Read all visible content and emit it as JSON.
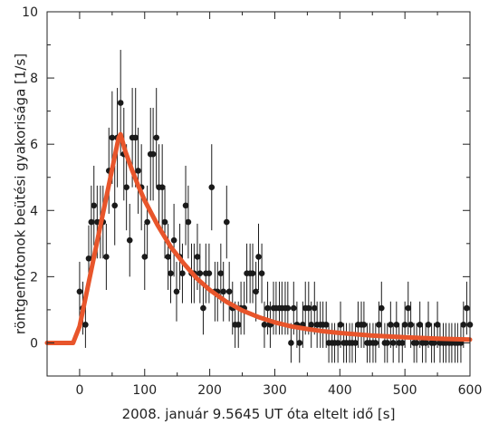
{
  "chart_data": {
    "type": "scatter",
    "xlabel": "2008. január 9.5645 UT óta eltelt idő [s]",
    "ylabel": "röntgenfotonok beütési gyakorisága [1/s]",
    "xlim": [
      -50,
      600
    ],
    "ylim": [
      -1,
      10
    ],
    "x_ticks": [
      "0",
      "100",
      "200",
      "300",
      "400",
      "500",
      "600"
    ],
    "y_ticks": [
      "0",
      "2",
      "4",
      "6",
      "8",
      "10"
    ],
    "grid": false,
    "colors": {
      "model": "#e8552b",
      "points": "#1a1a1a",
      "error_bars": "#1a1a1a",
      "axes": "#222222"
    },
    "series": [
      {
        "type": "scatter-errorbar",
        "points": [
          [
            0,
            1.55,
            0.9
          ],
          [
            5,
            1.05,
            0.8
          ],
          [
            9,
            0.55,
            0.7
          ],
          [
            14,
            2.55,
            1.0
          ],
          [
            18,
            3.65,
            1.1
          ],
          [
            22,
            4.15,
            1.2
          ],
          [
            27,
            3.65,
            1.1
          ],
          [
            32,
            3.65,
            1.1
          ],
          [
            36,
            3.65,
            1.1
          ],
          [
            41,
            2.6,
            1.0
          ],
          [
            45,
            5.2,
            1.3
          ],
          [
            50,
            6.2,
            1.4
          ],
          [
            54,
            4.15,
            1.2
          ],
          [
            58,
            6.2,
            1.5
          ],
          [
            63,
            7.25,
            1.6
          ],
          [
            68,
            5.7,
            1.4
          ],
          [
            72,
            4.7,
            1.3
          ],
          [
            77,
            3.1,
            1.1
          ],
          [
            81,
            6.2,
            1.5
          ],
          [
            86,
            6.2,
            1.5
          ],
          [
            90,
            5.2,
            1.3
          ],
          [
            95,
            4.7,
            1.3
          ],
          [
            100,
            2.6,
            1.0
          ],
          [
            104,
            3.65,
            1.1
          ],
          [
            109,
            5.7,
            1.4
          ],
          [
            113,
            5.7,
            1.4
          ],
          [
            118,
            6.2,
            1.5
          ],
          [
            122,
            4.7,
            1.3
          ],
          [
            127,
            4.7,
            1.3
          ],
          [
            131,
            3.65,
            1.1
          ],
          [
            136,
            2.6,
            1.0
          ],
          [
            140,
            2.1,
            0.9
          ],
          [
            145,
            3.1,
            1.1
          ],
          [
            149,
            1.55,
            0.9
          ],
          [
            154,
            2.6,
            1.0
          ],
          [
            158,
            2.1,
            0.9
          ],
          [
            163,
            4.15,
            1.2
          ],
          [
            167,
            3.65,
            1.1
          ],
          [
            172,
            2.1,
            0.9
          ],
          [
            176,
            2.1,
            0.9
          ],
          [
            181,
            2.6,
            1.0
          ],
          [
            185,
            2.1,
            0.9
          ],
          [
            190,
            1.05,
            0.8
          ],
          [
            194,
            2.1,
            0.9
          ],
          [
            199,
            2.1,
            0.9
          ],
          [
            203,
            4.7,
            1.3
          ],
          [
            208,
            1.55,
            0.9
          ],
          [
            212,
            1.55,
            0.9
          ],
          [
            217,
            2.1,
            0.9
          ],
          [
            221,
            1.55,
            0.9
          ],
          [
            226,
            3.65,
            1.1
          ],
          [
            230,
            1.55,
            0.9
          ],
          [
            235,
            1.05,
            0.8
          ],
          [
            239,
            0.55,
            0.7
          ],
          [
            244,
            0.55,
            0.7
          ],
          [
            248,
            1.05,
            0.8
          ],
          [
            253,
            1.05,
            0.8
          ],
          [
            257,
            2.1,
            0.9
          ],
          [
            262,
            2.1,
            0.9
          ],
          [
            266,
            2.1,
            0.9
          ],
          [
            271,
            1.55,
            0.9
          ],
          [
            275,
            2.6,
            1.0
          ],
          [
            280,
            2.1,
            0.9
          ],
          [
            284,
            0.55,
            0.7
          ],
          [
            289,
            1.05,
            0.8
          ],
          [
            293,
            0.55,
            0.7
          ],
          [
            298,
            1.05,
            0.8
          ],
          [
            302,
            1.05,
            0.8
          ],
          [
            307,
            1.05,
            0.8
          ],
          [
            311,
            1.05,
            0.8
          ],
          [
            316,
            1.05,
            0.8
          ],
          [
            320,
            1.05,
            0.8
          ],
          [
            325,
            0.0,
            0.6
          ],
          [
            329,
            1.05,
            0.8
          ],
          [
            334,
            0.55,
            0.7
          ],
          [
            338,
            0.0,
            0.6
          ],
          [
            343,
            0.55,
            0.7
          ],
          [
            347,
            1.05,
            0.8
          ],
          [
            352,
            1.05,
            0.8
          ],
          [
            356,
            0.55,
            0.7
          ],
          [
            361,
            1.05,
            0.8
          ],
          [
            365,
            0.55,
            0.7
          ],
          [
            370,
            0.55,
            0.7
          ],
          [
            374,
            0.55,
            0.7
          ],
          [
            379,
            0.55,
            0.7
          ],
          [
            383,
            0.0,
            0.6
          ],
          [
            388,
            0.0,
            0.6
          ],
          [
            392,
            0.0,
            0.6
          ],
          [
            397,
            0.0,
            0.6
          ],
          [
            401,
            0.55,
            0.7
          ],
          [
            406,
            0.0,
            0.6
          ],
          [
            410,
            0.0,
            0.6
          ],
          [
            415,
            0.0,
            0.6
          ],
          [
            419,
            0.0,
            0.6
          ],
          [
            424,
            0.0,
            0.6
          ],
          [
            428,
            0.55,
            0.7
          ],
          [
            433,
            0.55,
            0.7
          ],
          [
            437,
            0.55,
            0.7
          ],
          [
            442,
            0.0,
            0.6
          ],
          [
            446,
            0.0,
            0.6
          ],
          [
            451,
            0.0,
            0.6
          ],
          [
            455,
            0.0,
            0.6
          ],
          [
            460,
            0.55,
            0.7
          ],
          [
            464,
            1.05,
            0.8
          ],
          [
            469,
            0.0,
            0.6
          ],
          [
            473,
            0.0,
            0.6
          ],
          [
            478,
            0.55,
            0.7
          ],
          [
            482,
            0.0,
            0.6
          ],
          [
            487,
            0.55,
            0.7
          ],
          [
            491,
            0.0,
            0.6
          ],
          [
            496,
            0.0,
            0.6
          ],
          [
            500,
            0.55,
            0.7
          ],
          [
            505,
            1.05,
            0.8
          ],
          [
            509,
            0.55,
            0.7
          ],
          [
            514,
            0.0,
            0.6
          ],
          [
            518,
            0.0,
            0.6
          ],
          [
            523,
            0.55,
            0.7
          ],
          [
            527,
            0.0,
            0.6
          ],
          [
            532,
            0.0,
            0.6
          ],
          [
            536,
            0.55,
            0.7
          ],
          [
            541,
            0.0,
            0.6
          ],
          [
            545,
            0.0,
            0.6
          ],
          [
            550,
            0.55,
            0.7
          ],
          [
            554,
            0.0,
            0.6
          ],
          [
            559,
            0.0,
            0.6
          ],
          [
            563,
            0.0,
            0.6
          ],
          [
            568,
            0.0,
            0.6
          ],
          [
            572,
            0.0,
            0.6
          ],
          [
            577,
            0.0,
            0.6
          ],
          [
            581,
            0.0,
            0.6
          ],
          [
            586,
            0.0,
            0.6
          ],
          [
            590,
            0.55,
            0.7
          ],
          [
            595,
            1.05,
            0.8
          ],
          [
            600,
            0.55,
            0.7
          ]
        ]
      },
      {
        "type": "line",
        "x": [
          -50,
          -10,
          0,
          10,
          20,
          30,
          40,
          50,
          60,
          63,
          70,
          80,
          90,
          100,
          120,
          140,
          160,
          180,
          200,
          225,
          250,
          275,
          300,
          325,
          350,
          375,
          400,
          450,
          500,
          550,
          600
        ],
        "y": [
          0,
          0,
          0.5,
          1.45,
          2.4,
          3.35,
          4.3,
          5.25,
          6.2,
          6.3,
          5.8,
          5.25,
          4.75,
          4.3,
          3.55,
          2.9,
          2.4,
          1.95,
          1.6,
          1.25,
          0.98,
          0.78,
          0.62,
          0.5,
          0.42,
          0.35,
          0.3,
          0.22,
          0.17,
          0.13,
          0.1
        ]
      }
    ]
  }
}
